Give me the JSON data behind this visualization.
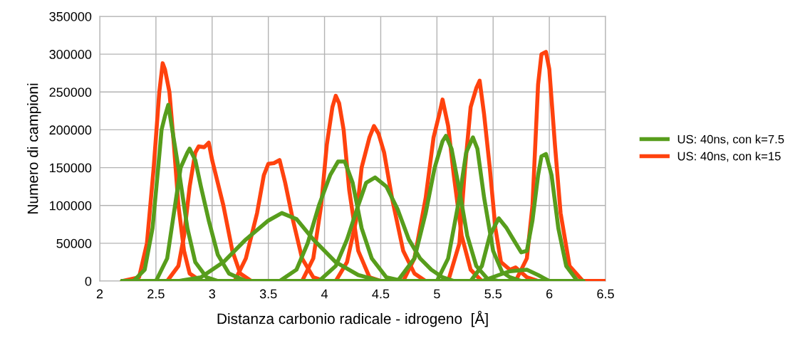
{
  "chart_data": {
    "type": "line",
    "xlabel": "Distanza carbonio radicale - idrogeno  [Å]",
    "ylabel": "Numero di campioni",
    "xlim": [
      2,
      6.5
    ],
    "xticks": [
      2,
      2.5,
      3,
      3.5,
      4,
      4.5,
      5,
      5.5,
      6,
      6.5
    ],
    "ylim": [
      0,
      350000
    ],
    "yticks": [
      0,
      50000,
      100000,
      150000,
      200000,
      250000,
      300000,
      350000
    ],
    "grid": true,
    "legend": "right",
    "marker": "none",
    "line_style": "solid",
    "series": [
      {
        "name": "US: 40ns, con k=7.5",
        "color": "#579d1c",
        "x": [
          2.2,
          2.3,
          2.4,
          2.47,
          2.52,
          2.55,
          2.58,
          2.61,
          2.64,
          2.7,
          2.78,
          2.85,
          2.95,
          3.05,
          6.3
        ],
        "values": [
          0,
          0,
          15000,
          70000,
          150000,
          200000,
          218000,
          233000,
          205000,
          150000,
          70000,
          25000,
          5000,
          0,
          0
        ]
      },
      {
        "color": "#579d1c",
        "x": [
          2.2,
          2.5,
          2.6,
          2.67,
          2.72,
          2.78,
          2.8,
          2.85,
          2.9,
          2.97,
          3.05,
          3.15,
          3.3,
          6.3
        ],
        "values": [
          0,
          0,
          30000,
          100000,
          150000,
          170000,
          175000,
          160000,
          125000,
          80000,
          35000,
          10000,
          0,
          0
        ]
      },
      {
        "color": "#579d1c",
        "x": [
          2.2,
          2.7,
          2.9,
          3.1,
          3.3,
          3.5,
          3.62,
          3.75,
          3.9,
          4.1,
          4.3,
          4.5,
          6.3
        ],
        "values": [
          0,
          0,
          5000,
          25000,
          55000,
          80000,
          90000,
          82000,
          55000,
          25000,
          8000,
          0,
          0
        ]
      },
      {
        "color": "#579d1c",
        "x": [
          2.2,
          3.6,
          3.75,
          3.85,
          3.95,
          4.05,
          4.12,
          4.18,
          4.25,
          4.33,
          4.42,
          4.55,
          4.7,
          6.3
        ],
        "values": [
          0,
          0,
          15000,
          50000,
          100000,
          140000,
          158000,
          158000,
          130000,
          70000,
          30000,
          5000,
          0,
          0
        ]
      },
      {
        "color": "#579d1c",
        "x": [
          2.2,
          3.95,
          4.1,
          4.2,
          4.3,
          4.37,
          4.45,
          4.55,
          4.65,
          4.75,
          4.85,
          4.95,
          5.05,
          5.15,
          6.3
        ],
        "values": [
          0,
          0,
          20000,
          55000,
          100000,
          130000,
          137000,
          125000,
          95000,
          55000,
          30000,
          15000,
          5000,
          0,
          0
        ]
      },
      {
        "color": "#579d1c",
        "x": [
          2.2,
          4.65,
          4.8,
          4.9,
          4.98,
          5.05,
          5.08,
          5.13,
          5.2,
          5.27,
          5.35,
          5.45,
          5.55,
          6.3
        ],
        "values": [
          0,
          0,
          30000,
          90000,
          150000,
          185000,
          192000,
          175000,
          120000,
          60000,
          20000,
          3000,
          0,
          0
        ]
      },
      {
        "color": "#579d1c",
        "x": [
          2.2,
          5.0,
          5.1,
          5.2,
          5.26,
          5.32,
          5.36,
          5.42,
          5.5,
          5.58,
          5.65,
          5.75,
          6.3
        ],
        "values": [
          0,
          0,
          30000,
          110000,
          170000,
          190000,
          175000,
          110000,
          40000,
          12000,
          5000,
          0,
          0
        ]
      },
      {
        "color": "#579d1c",
        "x": [
          2.2,
          5.3,
          5.4,
          5.47,
          5.55,
          5.62,
          5.68,
          5.75,
          5.8,
          5.85,
          5.9,
          5.93,
          5.97,
          6.02,
          6.08,
          6.15,
          6.25,
          6.3
        ],
        "values": [
          0,
          0,
          20000,
          60000,
          83000,
          70000,
          55000,
          38000,
          40000,
          80000,
          140000,
          165000,
          168000,
          140000,
          70000,
          20000,
          0,
          0
        ]
      },
      {
        "color": "#579d1c",
        "x": [
          2.2,
          5.4,
          5.55,
          5.65,
          5.8,
          5.9,
          6.0,
          6.3
        ],
        "values": [
          0,
          0,
          8000,
          13000,
          15000,
          8000,
          0,
          0
        ]
      },
      {
        "name": "US: 40ns, con k=15",
        "color": "#ff420e",
        "x": [
          2.2,
          2.35,
          2.42,
          2.48,
          2.53,
          2.56,
          2.58,
          2.62,
          2.66,
          2.7,
          2.75,
          2.8,
          2.9,
          6.5
        ],
        "values": [
          0,
          5000,
          50000,
          150000,
          250000,
          288000,
          280000,
          250000,
          180000,
          100000,
          40000,
          10000,
          0,
          0
        ]
      },
      {
        "color": "#ff420e",
        "x": [
          2.2,
          2.6,
          2.7,
          2.75,
          2.8,
          2.85,
          2.88,
          2.93,
          2.97,
          3.0,
          3.1,
          3.18,
          3.25,
          3.35,
          6.5
        ],
        "values": [
          0,
          0,
          20000,
          60000,
          125000,
          170000,
          178000,
          177000,
          183000,
          160000,
          100000,
          40000,
          10000,
          0,
          0
        ]
      },
      {
        "color": "#ff420e",
        "x": [
          2.2,
          3.2,
          3.3,
          3.4,
          3.46,
          3.5,
          3.55,
          3.6,
          3.65,
          3.72,
          3.8,
          3.9,
          4.0,
          6.5
        ],
        "values": [
          0,
          0,
          30000,
          90000,
          140000,
          155000,
          156000,
          160000,
          130000,
          80000,
          30000,
          5000,
          0,
          0
        ]
      },
      {
        "color": "#ff420e",
        "x": [
          2.2,
          3.8,
          3.9,
          3.97,
          4.02,
          4.07,
          4.1,
          4.13,
          4.17,
          4.22,
          4.3,
          4.4,
          4.5,
          6.5
        ],
        "values": [
          0,
          0,
          30000,
          100000,
          180000,
          230000,
          245000,
          235000,
          200000,
          120000,
          40000,
          5000,
          0,
          0
        ]
      },
      {
        "color": "#ff420e",
        "x": [
          2.2,
          4.1,
          4.2,
          4.28,
          4.33,
          4.4,
          4.44,
          4.48,
          4.53,
          4.6,
          4.7,
          4.8,
          4.9,
          6.5
        ],
        "values": [
          0,
          0,
          25000,
          80000,
          150000,
          190000,
          205000,
          195000,
          170000,
          110000,
          40000,
          10000,
          0,
          0
        ]
      },
      {
        "color": "#ff420e",
        "x": [
          2.2,
          4.7,
          4.8,
          4.9,
          4.97,
          5.02,
          5.05,
          5.1,
          5.15,
          5.22,
          5.3,
          5.4,
          6.5
        ],
        "values": [
          0,
          0,
          30000,
          110000,
          190000,
          220000,
          240000,
          205000,
          140000,
          60000,
          15000,
          0,
          0
        ]
      },
      {
        "color": "#ff420e",
        "x": [
          2.2,
          5.1,
          5.2,
          5.25,
          5.3,
          5.35,
          5.38,
          5.42,
          5.47,
          5.52,
          5.57,
          5.65,
          5.7,
          5.8,
          5.9,
          6.5
        ],
        "values": [
          0,
          0,
          50000,
          150000,
          230000,
          255000,
          265000,
          220000,
          150000,
          70000,
          25000,
          15000,
          18000,
          5000,
          0,
          0
        ]
      },
      {
        "color": "#ff420e",
        "x": [
          2.2,
          5.7,
          5.8,
          5.85,
          5.9,
          5.93,
          5.97,
          6.0,
          6.05,
          6.1,
          6.18,
          6.3,
          6.5
        ],
        "values": [
          0,
          0,
          30000,
          100000,
          260000,
          300000,
          303000,
          280000,
          180000,
          90000,
          20000,
          0,
          0
        ]
      }
    ]
  }
}
